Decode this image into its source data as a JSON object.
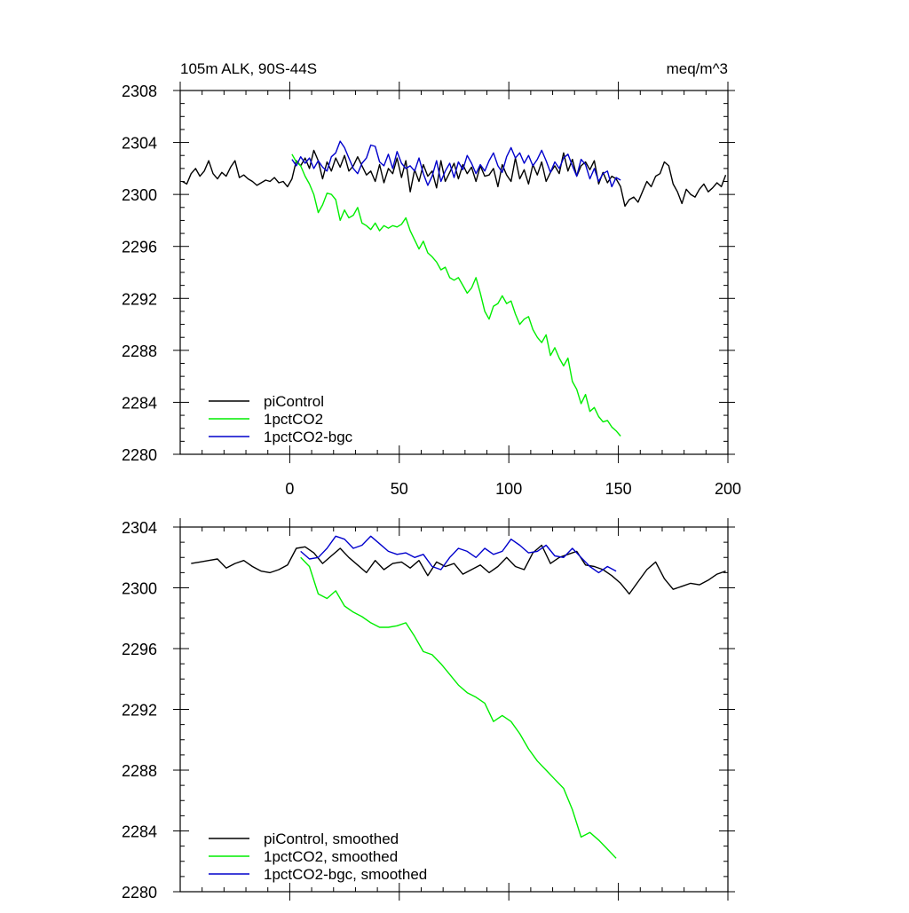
{
  "header": {
    "title": "105m ALK, 90S-44S",
    "units": "meq/m^3"
  },
  "chart_data": [
    {
      "type": "line",
      "title": "105m ALK, 90S-44S",
      "units_label": "meq/m^3",
      "xlim": [
        -50,
        200
      ],
      "ylim": [
        2280,
        2308
      ],
      "x_ticks": [
        0,
        50,
        100,
        150,
        200
      ],
      "y_ticks": [
        2280,
        2284,
        2288,
        2292,
        2296,
        2300,
        2304,
        2308
      ],
      "legend_position": "bottom-left",
      "series": [
        {
          "name": "piControl",
          "color": "#000000",
          "x": [
            -49,
            -47,
            -45,
            -43,
            -41,
            -39,
            -37,
            -35,
            -33,
            -31,
            -29,
            -27,
            -25,
            -23,
            -21,
            -19,
            -17,
            -15,
            -13,
            -11,
            -9,
            -7,
            -5,
            -3,
            -1,
            1,
            3,
            5,
            7,
            9,
            11,
            13,
            15,
            17,
            19,
            21,
            23,
            25,
            27,
            29,
            31,
            33,
            35,
            37,
            39,
            41,
            43,
            45,
            47,
            49,
            51,
            53,
            55,
            57,
            59,
            61,
            63,
            65,
            67,
            69,
            71,
            73,
            75,
            77,
            79,
            81,
            83,
            85,
            87,
            89,
            91,
            93,
            95,
            97,
            99,
            101,
            103,
            105,
            107,
            109,
            111,
            113,
            115,
            117,
            119,
            121,
            123,
            125,
            127,
            129,
            131,
            133,
            135,
            137,
            139,
            141,
            143,
            145,
            147,
            149,
            151,
            153,
            155,
            157,
            159,
            161,
            163,
            165,
            167,
            169,
            171,
            173,
            175,
            177,
            179,
            181,
            183,
            185,
            187,
            189,
            191,
            193,
            195,
            197,
            199
          ],
          "values": [
            2301.0,
            2300.8,
            2301.6,
            2302.0,
            2301.4,
            2301.8,
            2302.6,
            2301.6,
            2301.2,
            2301.7,
            2301.4,
            2302.1,
            2302.6,
            2301.3,
            2301.5,
            2301.2,
            2301.0,
            2300.7,
            2300.9,
            2301.1,
            2301.0,
            2301.3,
            2300.9,
            2301.0,
            2300.6,
            2301.2,
            2302.6,
            2302.2,
            2302.8,
            2302.0,
            2303.4,
            2302.6,
            2301.2,
            2302.5,
            2301.8,
            2302.8,
            2302.1,
            2303.0,
            2301.8,
            2302.2,
            2302.9,
            2302.2,
            2301.5,
            2301.8,
            2301.0,
            2302.3,
            2300.9,
            2302.0,
            2301.6,
            2302.8,
            2301.3,
            2302.6,
            2300.2,
            2301.9,
            2301.0,
            2302.3,
            2301.4,
            2301.8,
            2300.5,
            2302.6,
            2301.0,
            2301.7,
            2302.4,
            2301.2,
            2302.3,
            2301.6,
            2302.1,
            2301.0,
            2302.2,
            2301.4,
            2301.5,
            2302.0,
            2300.6,
            2302.3,
            2301.5,
            2301.0,
            2302.8,
            2301.2,
            2301.9,
            2300.8,
            2302.3,
            2301.5,
            2302.5,
            2301.0,
            2301.7,
            2302.2,
            2301.6,
            2303.2,
            2301.8,
            2302.7,
            2301.4,
            2302.2,
            2302.5,
            2301.9,
            2302.6,
            2300.8,
            2301.7,
            2300.9,
            2301.4,
            2301.2,
            2300.6,
            2299.1,
            2299.6,
            2299.8,
            2299.4,
            2300.2,
            2301.0,
            2300.6,
            2301.4,
            2301.6,
            2302.5,
            2302.2,
            2300.8,
            2300.2,
            2299.3,
            2300.4,
            2300.0,
            2299.8,
            2300.4,
            2300.8,
            2300.2,
            2300.5,
            2300.9,
            2300.6,
            2301.5
          ]
        },
        {
          "name": "1pctCO2",
          "color": "#00ee00",
          "x": [
            1,
            3,
            5,
            7,
            9,
            11,
            13,
            15,
            17,
            19,
            21,
            23,
            25,
            27,
            29,
            31,
            33,
            35,
            37,
            39,
            41,
            43,
            45,
            47,
            49,
            51,
            53,
            55,
            57,
            59,
            61,
            63,
            65,
            67,
            69,
            71,
            73,
            75,
            77,
            79,
            81,
            83,
            85,
            87,
            89,
            91,
            93,
            95,
            97,
            99,
            101,
            103,
            105,
            107,
            109,
            111,
            113,
            115,
            117,
            119,
            121,
            123,
            125,
            127,
            129,
            131,
            133,
            135,
            137,
            139,
            141,
            143,
            145,
            147,
            149,
            151
          ],
          "values": [
            2303.1,
            2302.5,
            2302.2,
            2301.4,
            2300.8,
            2300.0,
            2298.6,
            2299.2,
            2300.1,
            2300.0,
            2299.6,
            2298.0,
            2298.8,
            2298.2,
            2298.4,
            2299.0,
            2297.8,
            2297.6,
            2297.3,
            2297.8,
            2297.2,
            2297.6,
            2297.4,
            2297.6,
            2297.5,
            2297.7,
            2298.2,
            2297.2,
            2296.5,
            2295.8,
            2296.4,
            2295.5,
            2295.2,
            2294.8,
            2294.2,
            2294.4,
            2293.6,
            2293.4,
            2293.6,
            2293.0,
            2292.4,
            2292.8,
            2293.6,
            2292.4,
            2291.0,
            2290.4,
            2291.4,
            2291.6,
            2292.2,
            2291.6,
            2291.8,
            2290.8,
            2290.0,
            2290.4,
            2290.6,
            2289.6,
            2289.0,
            2288.6,
            2289.2,
            2287.6,
            2288.2,
            2287.4,
            2286.8,
            2287.4,
            2285.6,
            2285.0,
            2283.9,
            2284.6,
            2283.3,
            2283.6,
            2282.9,
            2282.5,
            2282.6,
            2282.1,
            2281.8,
            2281.4
          ]
        },
        {
          "name": "1pctCO2-bgc",
          "color": "#0000cc",
          "x": [
            1,
            3,
            5,
            7,
            9,
            11,
            13,
            15,
            17,
            19,
            21,
            23,
            25,
            27,
            29,
            31,
            33,
            35,
            37,
            39,
            41,
            43,
            45,
            47,
            49,
            51,
            53,
            55,
            57,
            59,
            61,
            63,
            65,
            67,
            69,
            71,
            73,
            75,
            77,
            79,
            81,
            83,
            85,
            87,
            89,
            91,
            93,
            95,
            97,
            99,
            101,
            103,
            105,
            107,
            109,
            111,
            113,
            115,
            117,
            119,
            121,
            123,
            125,
            127,
            129,
            131,
            133,
            135,
            137,
            139,
            141,
            143,
            145,
            147,
            149,
            151
          ],
          "values": [
            2302.7,
            2302.2,
            2302.9,
            2302.4,
            2302.8,
            2302.0,
            2302.6,
            2302.1,
            2301.8,
            2302.9,
            2303.2,
            2304.1,
            2303.6,
            2302.8,
            2302.0,
            2301.6,
            2302.4,
            2302.8,
            2303.8,
            2303.7,
            2302.5,
            2302.2,
            2303.1,
            2302.0,
            2303.3,
            2302.4,
            2302.0,
            2302.2,
            2301.8,
            2302.8,
            2301.6,
            2300.7,
            2301.4,
            2302.6,
            2301.0,
            2301.8,
            2302.4,
            2301.3,
            2302.5,
            2301.9,
            2303.0,
            2302.4,
            2301.6,
            2302.3,
            2301.8,
            2302.6,
            2303.2,
            2302.2,
            2301.7,
            2302.9,
            2303.6,
            2302.8,
            2303.2,
            2302.4,
            2303.0,
            2302.2,
            2302.7,
            2303.4,
            2302.6,
            2301.7,
            2302.5,
            2302.0,
            2302.8,
            2303.1,
            2302.2,
            2301.4,
            2302.7,
            2302.3,
            2301.2,
            2302.0,
            2301.0,
            2301.6,
            2301.8,
            2300.6,
            2301.3,
            2301.1
          ]
        }
      ]
    },
    {
      "type": "line",
      "xlim": [
        -50,
        200
      ],
      "ylim": [
        2280,
        2304
      ],
      "x_ticks": [
        0,
        50,
        100,
        150,
        200
      ],
      "y_ticks": [
        2280,
        2284,
        2288,
        2292,
        2296,
        2300,
        2304
      ],
      "legend_position": "bottom-left",
      "series": [
        {
          "name": "piControl, smoothed",
          "color": "#000000",
          "x": [
            -45,
            -41,
            -37,
            -33,
            -29,
            -25,
            -21,
            -17,
            -13,
            -9,
            -5,
            -1,
            3,
            7,
            11,
            15,
            19,
            23,
            27,
            31,
            35,
            39,
            43,
            47,
            51,
            55,
            59,
            63,
            67,
            71,
            75,
            79,
            83,
            87,
            91,
            95,
            99,
            103,
            107,
            111,
            115,
            119,
            123,
            127,
            131,
            135,
            139,
            143,
            147,
            151,
            155,
            159,
            163,
            167,
            171,
            175,
            179,
            183,
            187,
            191,
            195,
            199
          ],
          "values": [
            2301.6,
            2301.7,
            2301.8,
            2301.9,
            2301.3,
            2301.6,
            2301.8,
            2301.4,
            2301.1,
            2301.0,
            2301.2,
            2301.5,
            2302.6,
            2302.7,
            2302.3,
            2301.6,
            2302.1,
            2302.6,
            2302.0,
            2301.5,
            2301.0,
            2301.8,
            2301.2,
            2301.6,
            2301.7,
            2301.3,
            2301.8,
            2300.8,
            2301.7,
            2301.4,
            2301.6,
            2300.9,
            2301.2,
            2301.5,
            2301.0,
            2301.4,
            2302.0,
            2301.4,
            2301.2,
            2302.3,
            2302.8,
            2301.6,
            2302.0,
            2302.2,
            2302.4,
            2301.5,
            2301.4,
            2301.2,
            2300.8,
            2300.3,
            2299.6,
            2300.4,
            2301.2,
            2301.7,
            2300.6,
            2299.9,
            2300.1,
            2300.3,
            2300.2,
            2300.5,
            2300.9,
            2301.1
          ]
        },
        {
          "name": "1pctCO2, smoothed",
          "color": "#00ee00",
          "x": [
            5,
            9,
            13,
            17,
            21,
            25,
            29,
            33,
            37,
            41,
            45,
            49,
            53,
            57,
            61,
            65,
            69,
            73,
            77,
            81,
            85,
            89,
            93,
            97,
            101,
            105,
            109,
            113,
            117,
            121,
            125,
            129,
            133,
            137,
            141,
            145,
            149
          ],
          "values": [
            2302.0,
            2301.4,
            2299.6,
            2299.3,
            2299.8,
            2298.8,
            2298.4,
            2298.1,
            2297.7,
            2297.4,
            2297.4,
            2297.5,
            2297.7,
            2296.8,
            2295.8,
            2295.6,
            2295.0,
            2294.3,
            2293.6,
            2293.1,
            2292.8,
            2292.4,
            2291.2,
            2291.6,
            2291.2,
            2290.4,
            2289.4,
            2288.6,
            2288.0,
            2287.4,
            2286.8,
            2285.4,
            2283.6,
            2283.9,
            2283.4,
            2282.8,
            2282.2
          ]
        },
        {
          "name": "1pctCO2-bgc, smoothed",
          "color": "#0000cc",
          "x": [
            5,
            9,
            13,
            17,
            21,
            25,
            29,
            33,
            37,
            41,
            45,
            49,
            53,
            57,
            61,
            65,
            69,
            73,
            77,
            81,
            85,
            89,
            93,
            97,
            101,
            105,
            109,
            113,
            117,
            121,
            125,
            129,
            133,
            137,
            141,
            145,
            149
          ],
          "values": [
            2302.4,
            2301.9,
            2302.0,
            2302.6,
            2303.4,
            2303.2,
            2302.6,
            2302.8,
            2303.4,
            2302.9,
            2302.4,
            2302.2,
            2302.3,
            2302.0,
            2302.2,
            2301.4,
            2301.2,
            2302.0,
            2302.6,
            2302.4,
            2302.0,
            2302.6,
            2302.2,
            2302.4,
            2303.2,
            2302.8,
            2302.3,
            2302.4,
            2302.8,
            2302.1,
            2302.0,
            2302.6,
            2302.0,
            2301.4,
            2301.0,
            2301.4,
            2301.1
          ]
        }
      ]
    }
  ]
}
